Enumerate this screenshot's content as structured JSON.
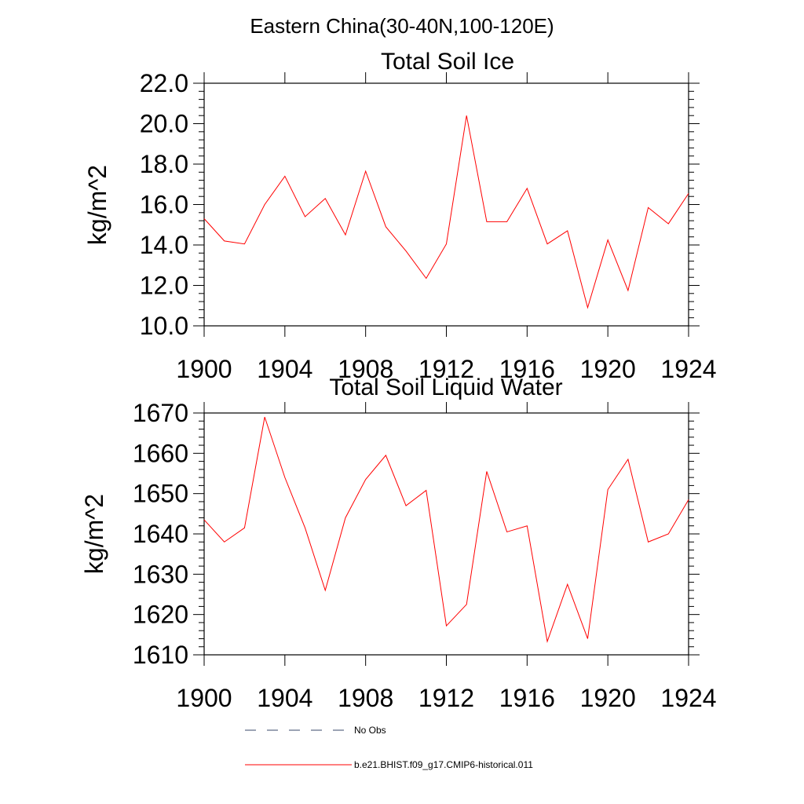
{
  "figure_title": "Eastern China(30-40N,100-120E)",
  "chart_data": [
    {
      "type": "line",
      "title": "Total Soil Ice",
      "xlabel": "",
      "ylabel": "kg/m^2",
      "xlim": [
        1900,
        1924
      ],
      "ylim": [
        10.0,
        22.0
      ],
      "xticks": [
        1900,
        1904,
        1908,
        1912,
        1916,
        1920,
        1924
      ],
      "yticks": [
        "10.0",
        "12.0",
        "14.0",
        "16.0",
        "18.0",
        "20.0",
        "22.0"
      ],
      "grid": false,
      "series": [
        {
          "name": "b.e21.BHIST.f09_g17.CMIP6-historical.011",
          "color": "#ff0000",
          "x": [
            1900,
            1901,
            1902,
            1903,
            1904,
            1905,
            1906,
            1907,
            1908,
            1909,
            1910,
            1911,
            1912,
            1913,
            1914,
            1915,
            1916,
            1917,
            1918,
            1919,
            1920,
            1921,
            1922,
            1923,
            1924
          ],
          "y": [
            15.3,
            14.2,
            14.05,
            16.0,
            17.4,
            15.4,
            16.3,
            14.5,
            17.65,
            14.9,
            13.7,
            12.35,
            14.05,
            20.4,
            15.15,
            15.15,
            16.8,
            14.05,
            14.7,
            10.9,
            14.25,
            11.75,
            15.85,
            15.05,
            16.55
          ]
        }
      ]
    },
    {
      "type": "line",
      "title": "Total Soil Liquid Water",
      "xlabel": "",
      "ylabel": "kg/m^2",
      "xlim": [
        1900,
        1924
      ],
      "ylim": [
        1610,
        1670
      ],
      "xticks": [
        1900,
        1904,
        1908,
        1912,
        1916,
        1920,
        1924
      ],
      "yticks": [
        "1610",
        "1620",
        "1630",
        "1640",
        "1650",
        "1660",
        "1670"
      ],
      "grid": false,
      "series": [
        {
          "name": "b.e21.BHIST.f09_g17.CMIP6-historical.011",
          "color": "#ff0000",
          "x": [
            1900,
            1901,
            1902,
            1903,
            1904,
            1905,
            1906,
            1907,
            1908,
            1909,
            1910,
            1911,
            1912,
            1913,
            1914,
            1915,
            1916,
            1917,
            1918,
            1919,
            1920,
            1921,
            1922,
            1923,
            1924
          ],
          "y": [
            1643.5,
            1638.0,
            1641.5,
            1669.0,
            1654.0,
            1641.5,
            1626.0,
            1644.0,
            1653.5,
            1659.5,
            1647.0,
            1650.8,
            1617.2,
            1622.5,
            1655.5,
            1640.5,
            1642.0,
            1613.3,
            1627.5,
            1614.0,
            1651.0,
            1658.5,
            1638.0,
            1640.0,
            1648.5
          ]
        }
      ]
    }
  ],
  "legend": {
    "placement": "bottom",
    "items": [
      {
        "label": "No Obs",
        "color": "#3a4a6b",
        "style": "dashed"
      },
      {
        "label": "b.e21.BHIST.f09_g17.CMIP6-historical.011",
        "color": "#ff0000",
        "style": "solid"
      }
    ]
  }
}
